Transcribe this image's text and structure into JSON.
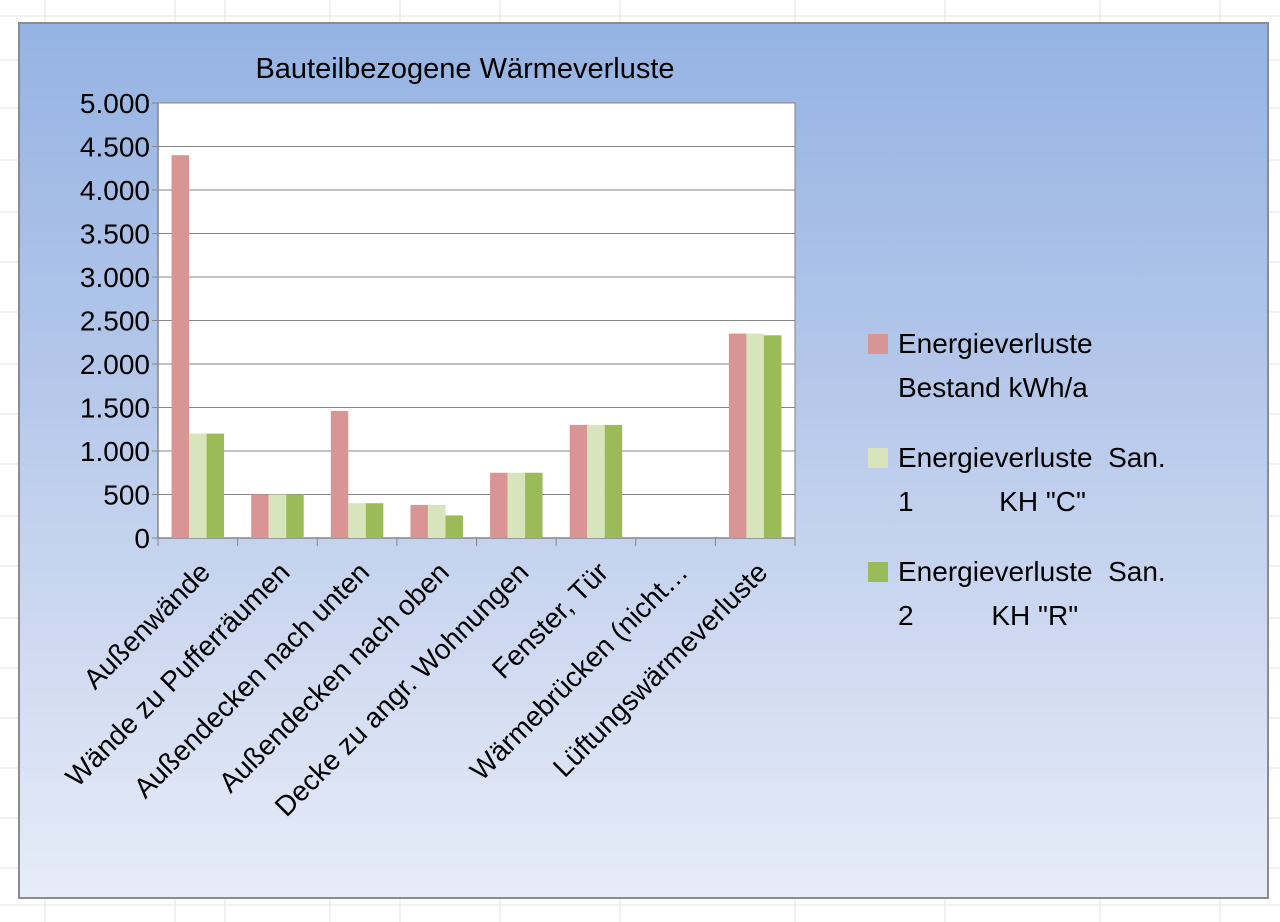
{
  "chart_data": {
    "type": "bar",
    "title": "Bauteilbezogene Wärmeverluste",
    "categories": [
      "Außenwände",
      "Wände zu Pufferräumen",
      "Außendecken nach unten",
      "Außendecken nach oben",
      "Decke zu angr. Wohnungen",
      "Fenster, Tür",
      "Wärmebrücken (nicht…",
      "Lüftungswärmeverluste"
    ],
    "series": [
      {
        "name": "Energieverluste Bestand kWh/a",
        "legend_lines": [
          "Energieverluste",
          "Bestand kWh/a"
        ],
        "color": "#d99594",
        "values": [
          4400,
          500,
          1460,
          380,
          750,
          1300,
          0,
          2350
        ]
      },
      {
        "name": "Energieverluste  San. 1           KH \"C\"",
        "legend_lines": [
          "Energieverluste  San.",
          "1           KH \"C\""
        ],
        "color": "#d7e4bc",
        "values": [
          1200,
          500,
          400,
          380,
          750,
          1300,
          0,
          2350
        ]
      },
      {
        "name": "Energieverluste  San. 2          KH \"R\"",
        "legend_lines": [
          "Energieverluste  San.",
          "2          KH \"R\""
        ],
        "color": "#9bbb59",
        "values": [
          1200,
          500,
          400,
          260,
          750,
          1300,
          0,
          2330
        ]
      }
    ],
    "ylim": [
      0,
      5000
    ],
    "yticks": [
      0,
      500,
      1000,
      1500,
      2000,
      2500,
      3000,
      3500,
      4000,
      4500,
      5000
    ],
    "ytick_labels": [
      "0",
      "500",
      "1.000",
      "1.500",
      "2.000",
      "2.500",
      "3.000",
      "3.500",
      "4.000",
      "4.500",
      "5.000"
    ],
    "grid": true,
    "legend_position": "right",
    "plot_background": "#ffffff",
    "frame_background": "#a9c0e8"
  }
}
